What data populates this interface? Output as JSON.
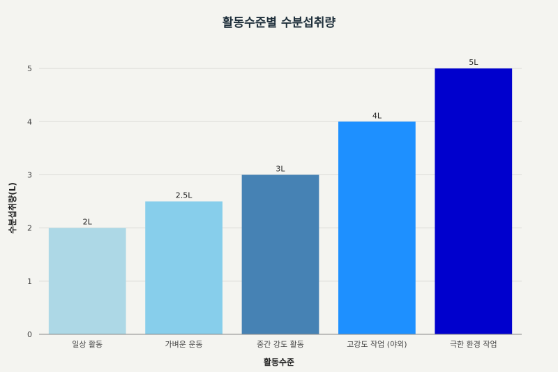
{
  "chart_data": {
    "type": "bar",
    "title": "활동수준별 수분섭취량",
    "xlabel": "활동수준",
    "ylabel": "수분섭취량(L)",
    "categories": [
      "일상 활동",
      "가벼운 운동",
      "중간 강도 활동",
      "고강도 작업 (야외)",
      "극한 환경 작업"
    ],
    "values": [
      2,
      2.5,
      3,
      4,
      5
    ],
    "data_labels": [
      "2L",
      "2.5L",
      "3L",
      "4L",
      "5L"
    ],
    "colors": [
      "#add8e6",
      "#87ceeb",
      "#4682b4",
      "#1e90ff",
      "#0000cd"
    ],
    "yticks": [
      "0",
      "1",
      "2",
      "3",
      "4",
      "5"
    ],
    "ylim": [
      0,
      5.5
    ],
    "grid": true,
    "legend": "none"
  }
}
